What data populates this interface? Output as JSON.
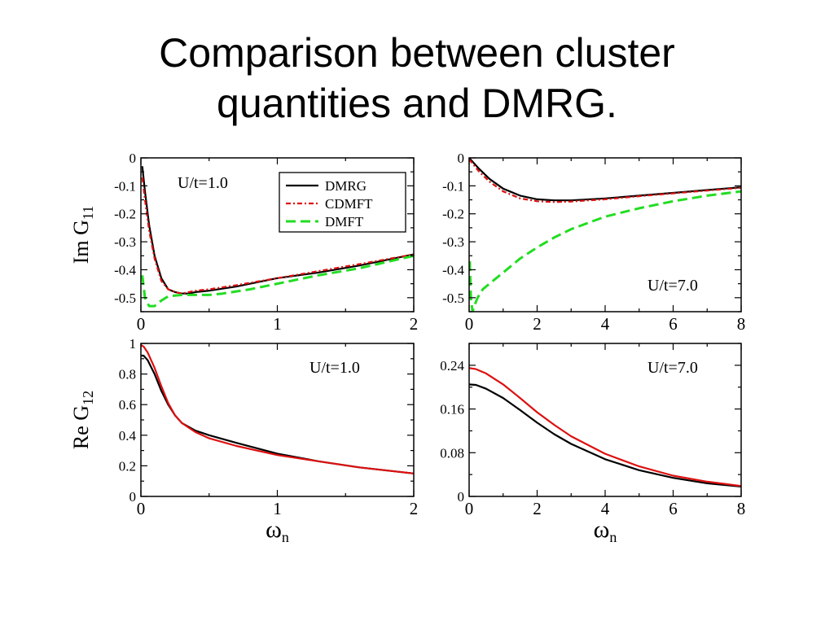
{
  "slide": {
    "title_line1": "Comparison between cluster",
    "title_line2": "quantities and DMRG."
  },
  "chart_data": [
    {
      "type": "line",
      "panel": "top-left",
      "annotation": "U/t=1.0",
      "ylabel": "Im G",
      "ylabel_sub": "11",
      "xlabel": "",
      "xlim": [
        0,
        2
      ],
      "ylim": [
        -0.55,
        0
      ],
      "xticks": [
        0,
        1,
        2
      ],
      "xticklabels": [
        "0",
        "1",
        "2"
      ],
      "yticks": [
        0,
        -0.1,
        -0.2,
        -0.3,
        -0.4,
        -0.5
      ],
      "yticklabels": [
        "0",
        "-0.1",
        "-0.2",
        "-0.3",
        "-0.4",
        "-0.5"
      ],
      "legend": {
        "placement": "top-right",
        "entries": [
          "DMRG",
          "CDMFT",
          "DMFT"
        ]
      },
      "series": [
        {
          "name": "DMRG",
          "color": "#000000",
          "dash": "solid",
          "width": 2.2,
          "x": [
            0.01,
            0.03,
            0.06,
            0.1,
            0.15,
            0.2,
            0.25,
            0.3,
            0.35,
            0.4,
            0.5,
            0.7,
            1.0,
            1.3,
            1.6,
            2.0
          ],
          "y": [
            -0.03,
            -0.12,
            -0.24,
            -0.35,
            -0.43,
            -0.47,
            -0.48,
            -0.485,
            -0.485,
            -0.48,
            -0.475,
            -0.46,
            -0.43,
            -0.41,
            -0.385,
            -0.345
          ]
        },
        {
          "name": "CDMFT",
          "color": "#dd1010",
          "dash": "6 3 2 3",
          "width": 2.2,
          "x": [
            0.01,
            0.03,
            0.06,
            0.1,
            0.15,
            0.2,
            0.25,
            0.3,
            0.35,
            0.4,
            0.5,
            0.7,
            1.0,
            1.3,
            1.6,
            2.0
          ],
          "y": [
            -0.07,
            -0.15,
            -0.26,
            -0.36,
            -0.44,
            -0.47,
            -0.48,
            -0.485,
            -0.48,
            -0.475,
            -0.47,
            -0.455,
            -0.43,
            -0.405,
            -0.38,
            -0.345
          ]
        },
        {
          "name": "DMFT",
          "color": "#22dd22",
          "dash": "12 6",
          "width": 3,
          "x": [
            0.01,
            0.03,
            0.06,
            0.1,
            0.15,
            0.2,
            0.3,
            0.4,
            0.5,
            0.6,
            0.8,
            1.0,
            1.3,
            1.6,
            2.0
          ],
          "y": [
            -0.42,
            -0.5,
            -0.53,
            -0.53,
            -0.51,
            -0.495,
            -0.49,
            -0.49,
            -0.49,
            -0.485,
            -0.47,
            -0.45,
            -0.42,
            -0.395,
            -0.35
          ]
        }
      ]
    },
    {
      "type": "line",
      "panel": "top-right",
      "annotation": "U/t=7.0",
      "ylabel": "",
      "xlabel": "",
      "xlim": [
        0,
        8
      ],
      "ylim": [
        -0.55,
        0
      ],
      "xticks": [
        0,
        2,
        4,
        6,
        8
      ],
      "xticklabels": [
        "0",
        "2",
        "4",
        "6",
        "8"
      ],
      "yticks": [
        0,
        -0.1,
        -0.2,
        -0.3,
        -0.4,
        -0.5
      ],
      "yticklabels": [
        "0",
        "-0.1",
        "-0.2",
        "-0.3",
        "-0.4",
        "-0.5"
      ],
      "series": [
        {
          "name": "DMRG",
          "color": "#000000",
          "dash": "solid",
          "width": 2.2,
          "x": [
            0,
            0.3,
            0.6,
            1.0,
            1.5,
            2.0,
            2.5,
            3.0,
            4.0,
            5.0,
            6.0,
            7.0,
            8.0
          ],
          "y": [
            0,
            -0.04,
            -0.075,
            -0.11,
            -0.135,
            -0.148,
            -0.152,
            -0.152,
            -0.145,
            -0.135,
            -0.125,
            -0.115,
            -0.105
          ]
        },
        {
          "name": "CDMFT",
          "color": "#dd1010",
          "dash": "6 3 2 3",
          "width": 2.2,
          "x": [
            0,
            0.3,
            0.6,
            1.0,
            1.5,
            2.0,
            2.5,
            3.0,
            4.0,
            5.0,
            6.0,
            7.0,
            8.0
          ],
          "y": [
            -0.005,
            -0.05,
            -0.085,
            -0.12,
            -0.145,
            -0.155,
            -0.158,
            -0.156,
            -0.148,
            -0.137,
            -0.127,
            -0.117,
            -0.107
          ]
        },
        {
          "name": "DMFT",
          "color": "#22dd22",
          "dash": "12 6",
          "width": 3,
          "x": [
            0.02,
            0.05,
            0.1,
            0.15,
            0.25,
            0.4,
            0.6,
            1.0,
            1.5,
            2.0,
            2.5,
            3.0,
            4.0,
            5.0,
            6.0,
            7.0,
            8.0
          ],
          "y": [
            -0.37,
            -0.5,
            -0.55,
            -0.53,
            -0.5,
            -0.47,
            -0.45,
            -0.41,
            -0.36,
            -0.32,
            -0.285,
            -0.255,
            -0.21,
            -0.18,
            -0.155,
            -0.135,
            -0.12
          ]
        }
      ]
    },
    {
      "type": "line",
      "panel": "bottom-left",
      "annotation": "U/t=1.0",
      "ylabel": "Re G",
      "ylabel_sub": "12",
      "xlabel": "ω",
      "xlabel_sub": "n",
      "xlim": [
        0,
        2
      ],
      "ylim": [
        0,
        1
      ],
      "xticks": [
        0,
        1,
        2
      ],
      "xticklabels": [
        "0",
        "1",
        "2"
      ],
      "yticks": [
        0,
        0.2,
        0.4,
        0.6,
        0.8,
        1
      ],
      "yticklabels": [
        "0",
        "0.2",
        "0.4",
        "0.6",
        "0.8",
        "1"
      ],
      "series": [
        {
          "name": "DMRG",
          "color": "#000000",
          "dash": "solid",
          "width": 2.2,
          "x": [
            0,
            0.02,
            0.05,
            0.1,
            0.15,
            0.2,
            0.25,
            0.3,
            0.4,
            0.5,
            0.7,
            1.0,
            1.3,
            1.6,
            2.0
          ],
          "y": [
            0.92,
            0.92,
            0.89,
            0.8,
            0.69,
            0.6,
            0.53,
            0.48,
            0.43,
            0.4,
            0.35,
            0.28,
            0.23,
            0.19,
            0.15
          ]
        },
        {
          "name": "CDMFT",
          "color": "#dd1010",
          "dash": "solid",
          "width": 2.2,
          "x": [
            0,
            0.02,
            0.05,
            0.1,
            0.15,
            0.2,
            0.25,
            0.3,
            0.4,
            0.5,
            0.7,
            1.0,
            1.3,
            1.6,
            2.0
          ],
          "y": [
            0.99,
            0.98,
            0.94,
            0.84,
            0.72,
            0.61,
            0.53,
            0.48,
            0.42,
            0.38,
            0.33,
            0.27,
            0.23,
            0.19,
            0.15
          ]
        }
      ]
    },
    {
      "type": "line",
      "panel": "bottom-right",
      "annotation": "U/t=7.0",
      "ylabel": "",
      "xlabel": "ω",
      "xlabel_sub": "n",
      "xlim": [
        0,
        8
      ],
      "ylim": [
        0,
        0.28
      ],
      "xticks": [
        0,
        2,
        4,
        6,
        8
      ],
      "xticklabels": [
        "0",
        "2",
        "4",
        "6",
        "8"
      ],
      "yticks": [
        0,
        0.08,
        0.16,
        0.24
      ],
      "yticklabels": [
        "0",
        "0.08",
        "0.16",
        "0.24"
      ],
      "series": [
        {
          "name": "DMRG",
          "color": "#000000",
          "dash": "solid",
          "width": 2.2,
          "x": [
            0,
            0.2,
            0.5,
            1.0,
            1.5,
            2.0,
            2.5,
            3.0,
            4.0,
            5.0,
            6.0,
            7.0,
            8.0
          ],
          "y": [
            0.205,
            0.204,
            0.197,
            0.18,
            0.158,
            0.135,
            0.114,
            0.096,
            0.068,
            0.048,
            0.034,
            0.024,
            0.018
          ]
        },
        {
          "name": "CDMFT",
          "color": "#dd1010",
          "dash": "solid",
          "width": 2.2,
          "x": [
            0,
            0.2,
            0.5,
            1.0,
            1.5,
            2.0,
            2.5,
            3.0,
            4.0,
            5.0,
            6.0,
            7.0,
            8.0
          ],
          "y": [
            0.235,
            0.233,
            0.225,
            0.205,
            0.18,
            0.154,
            0.131,
            0.11,
            0.078,
            0.055,
            0.038,
            0.027,
            0.019
          ]
        }
      ]
    }
  ]
}
